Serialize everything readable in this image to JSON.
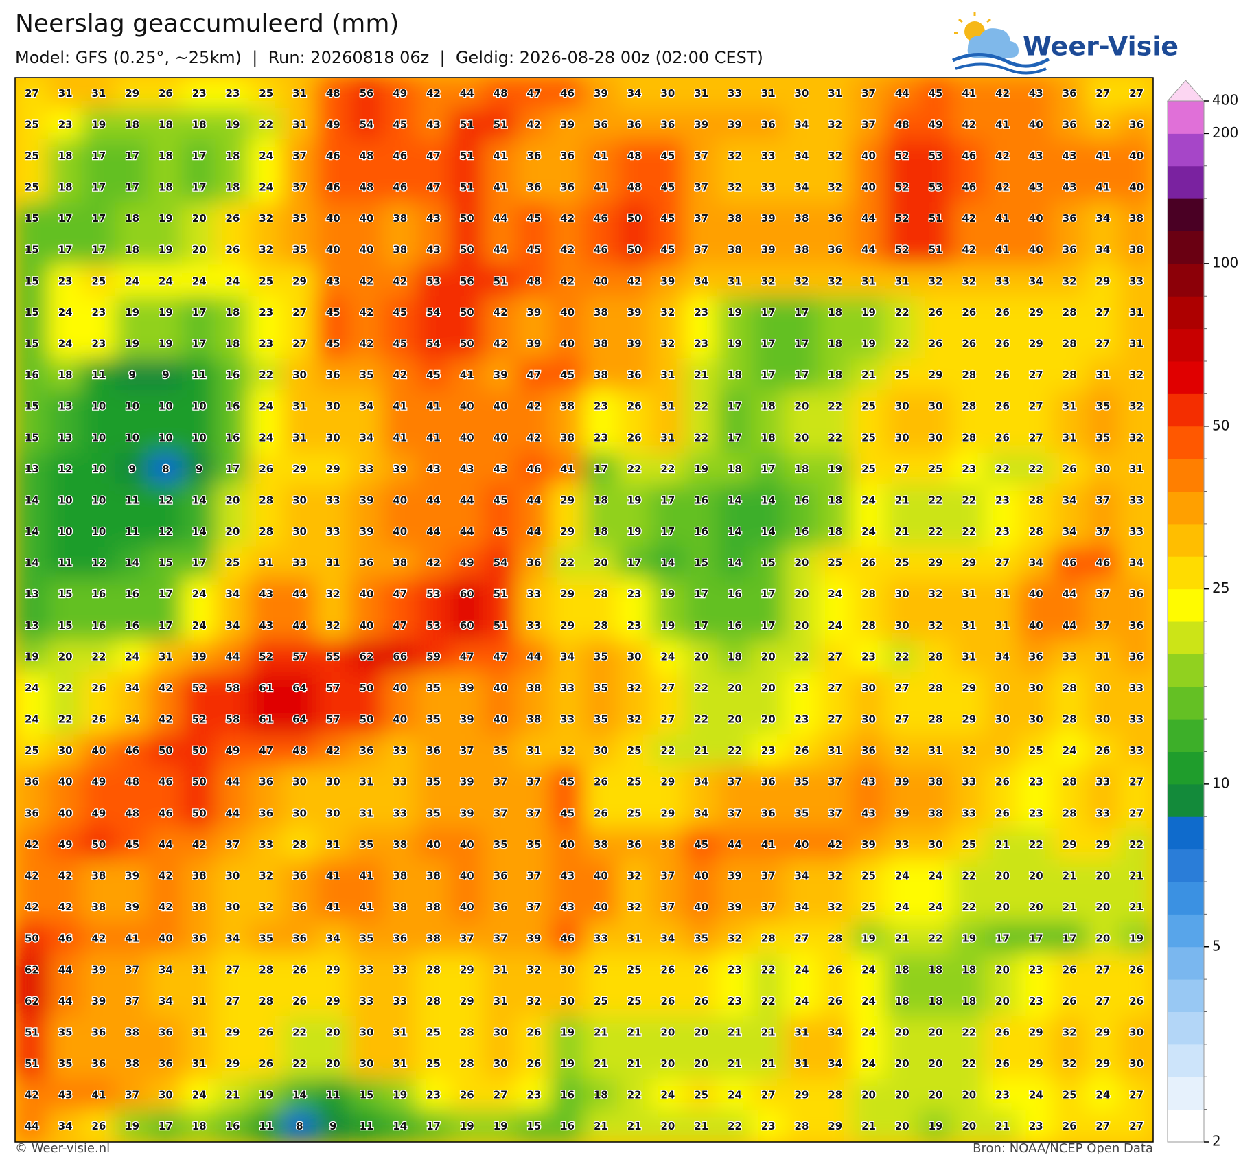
{
  "header": {
    "title": "Neerslag geaccumuleerd (mm)",
    "subtitle": "Model: GFS (0.25°, ~25km)  |  Run: 20260818 06z  |  Geldig: 2026-08-28 00z (02:00 CEST)",
    "logo": "Weer-Visie"
  },
  "map": {
    "values": [
      [
        27,
        31,
        31,
        29,
        26,
        23,
        23,
        25,
        31,
        48,
        56,
        49,
        42,
        44,
        48,
        47,
        46,
        39,
        34,
        30,
        31,
        33,
        31,
        30,
        31,
        37,
        44,
        45,
        41,
        42,
        43,
        36,
        27,
        27
      ],
      [
        25,
        23,
        19,
        18,
        18,
        18,
        19,
        22,
        31,
        49,
        54,
        45,
        43,
        51,
        51,
        42,
        39,
        36,
        36,
        36,
        39,
        39,
        36,
        34,
        32,
        37,
        48,
        49,
        42,
        41,
        40,
        36,
        32,
        36
      ],
      [
        25,
        18,
        17,
        17,
        18,
        17,
        18,
        24,
        37,
        46,
        48,
        46,
        47,
        51,
        41,
        36,
        36,
        41,
        48,
        45,
        37,
        32,
        33,
        34,
        32,
        40,
        52,
        53,
        46,
        42,
        43,
        43,
        41,
        40
      ],
      [
        25,
        18,
        17,
        17,
        18,
        17,
        18,
        24,
        37,
        46,
        48,
        46,
        47,
        51,
        41,
        36,
        36,
        41,
        48,
        45,
        37,
        32,
        33,
        34,
        32,
        40,
        52,
        53,
        46,
        42,
        43,
        43,
        41,
        40
      ],
      [
        15,
        17,
        17,
        18,
        19,
        20,
        26,
        32,
        35,
        40,
        40,
        38,
        43,
        50,
        44,
        45,
        42,
        46,
        50,
        45,
        37,
        38,
        39,
        38,
        36,
        44,
        52,
        51,
        42,
        41,
        40,
        36,
        34,
        38
      ],
      [
        15,
        17,
        17,
        18,
        19,
        20,
        26,
        32,
        35,
        40,
        40,
        38,
        43,
        50,
        44,
        45,
        42,
        46,
        50,
        45,
        37,
        38,
        39,
        38,
        36,
        44,
        52,
        51,
        42,
        41,
        40,
        36,
        34,
        38
      ],
      [
        15,
        23,
        25,
        24,
        24,
        24,
        24,
        25,
        29,
        43,
        42,
        42,
        53,
        56,
        51,
        48,
        42,
        40,
        42,
        39,
        34,
        31,
        32,
        32,
        32,
        31,
        31,
        32,
        32,
        33,
        34,
        32,
        29,
        33
      ],
      [
        15,
        24,
        23,
        19,
        19,
        17,
        18,
        23,
        27,
        45,
        42,
        45,
        54,
        50,
        42,
        39,
        40,
        38,
        39,
        32,
        23,
        19,
        17,
        17,
        18,
        19,
        22,
        26,
        26,
        26,
        29,
        28,
        27,
        31
      ],
      [
        15,
        24,
        23,
        19,
        19,
        17,
        18,
        23,
        27,
        45,
        42,
        45,
        54,
        50,
        42,
        39,
        40,
        38,
        39,
        32,
        23,
        19,
        17,
        17,
        18,
        19,
        22,
        26,
        26,
        26,
        29,
        28,
        27,
        31
      ],
      [
        16,
        18,
        11,
        9,
        9,
        11,
        16,
        22,
        30,
        36,
        35,
        42,
        45,
        41,
        39,
        47,
        45,
        38,
        36,
        31,
        21,
        18,
        17,
        17,
        18,
        21,
        25,
        29,
        28,
        26,
        27,
        28,
        31,
        32
      ],
      [
        15,
        13,
        10,
        10,
        10,
        10,
        16,
        24,
        31,
        30,
        34,
        41,
        41,
        40,
        40,
        42,
        38,
        23,
        26,
        31,
        22,
        17,
        18,
        20,
        22,
        25,
        30,
        30,
        28,
        26,
        27,
        31,
        35,
        32
      ],
      [
        15,
        13,
        10,
        10,
        10,
        10,
        16,
        24,
        31,
        30,
        34,
        41,
        41,
        40,
        40,
        42,
        38,
        23,
        26,
        31,
        22,
        17,
        18,
        20,
        22,
        25,
        30,
        30,
        28,
        26,
        27,
        31,
        35,
        32
      ],
      [
        13,
        12,
        10,
        9,
        8,
        9,
        17,
        26,
        29,
        29,
        33,
        39,
        43,
        43,
        43,
        46,
        41,
        17,
        22,
        22,
        19,
        18,
        17,
        18,
        19,
        25,
        27,
        25,
        23,
        22,
        22,
        26,
        30,
        31
      ],
      [
        14,
        10,
        10,
        11,
        12,
        14,
        20,
        28,
        30,
        33,
        39,
        40,
        44,
        44,
        45,
        44,
        29,
        18,
        19,
        17,
        16,
        14,
        14,
        16,
        18,
        24,
        21,
        22,
        22,
        23,
        28,
        34,
        37,
        33
      ],
      [
        14,
        10,
        10,
        11,
        12,
        14,
        20,
        28,
        30,
        33,
        39,
        40,
        44,
        44,
        45,
        44,
        29,
        18,
        19,
        17,
        16,
        14,
        14,
        16,
        18,
        24,
        21,
        22,
        22,
        23,
        28,
        34,
        37,
        33
      ],
      [
        14,
        11,
        12,
        14,
        15,
        17,
        25,
        31,
        33,
        31,
        36,
        38,
        42,
        49,
        54,
        36,
        22,
        20,
        17,
        14,
        15,
        14,
        15,
        20,
        25,
        26,
        25,
        29,
        29,
        27,
        34,
        46,
        46,
        34
      ],
      [
        13,
        15,
        16,
        16,
        17,
        24,
        34,
        43,
        44,
        32,
        40,
        47,
        53,
        60,
        51,
        33,
        29,
        28,
        23,
        19,
        17,
        16,
        17,
        20,
        24,
        28,
        30,
        32,
        31,
        31,
        40,
        44,
        37,
        36
      ],
      [
        13,
        15,
        16,
        16,
        17,
        24,
        34,
        43,
        44,
        32,
        40,
        47,
        53,
        60,
        51,
        33,
        29,
        28,
        23,
        19,
        17,
        16,
        17,
        20,
        24,
        28,
        30,
        32,
        31,
        31,
        40,
        44,
        37,
        36
      ],
      [
        19,
        20,
        22,
        24,
        31,
        39,
        44,
        52,
        57,
        55,
        62,
        66,
        59,
        47,
        47,
        44,
        34,
        35,
        30,
        24,
        20,
        18,
        20,
        22,
        27,
        23,
        22,
        28,
        31,
        34,
        36,
        33,
        31,
        36
      ],
      [
        24,
        22,
        26,
        34,
        42,
        52,
        58,
        61,
        64,
        57,
        50,
        40,
        35,
        39,
        40,
        38,
        33,
        35,
        32,
        27,
        22,
        20,
        20,
        23,
        27,
        30,
        27,
        28,
        29,
        30,
        30,
        28,
        30,
        33
      ],
      [
        24,
        22,
        26,
        34,
        42,
        52,
        58,
        61,
        64,
        57,
        50,
        40,
        35,
        39,
        40,
        38,
        33,
        35,
        32,
        27,
        22,
        20,
        20,
        23,
        27,
        30,
        27,
        28,
        29,
        30,
        30,
        28,
        30,
        33
      ],
      [
        25,
        30,
        40,
        46,
        50,
        50,
        49,
        47,
        48,
        42,
        36,
        33,
        36,
        37,
        35,
        31,
        32,
        30,
        25,
        22,
        21,
        22,
        23,
        26,
        31,
        36,
        32,
        31,
        32,
        30,
        25,
        24,
        26,
        33
      ],
      [
        36,
        40,
        49,
        48,
        46,
        50,
        44,
        36,
        30,
        30,
        31,
        33,
        35,
        39,
        37,
        37,
        45,
        26,
        25,
        29,
        34,
        37,
        36,
        35,
        37,
        43,
        39,
        38,
        33,
        26,
        23,
        28,
        33,
        27
      ],
      [
        36,
        40,
        49,
        48,
        46,
        50,
        44,
        36,
        30,
        30,
        31,
        33,
        35,
        39,
        37,
        37,
        45,
        26,
        25,
        29,
        34,
        37,
        36,
        35,
        37,
        43,
        39,
        38,
        33,
        26,
        23,
        28,
        33,
        27
      ],
      [
        42,
        49,
        50,
        45,
        44,
        42,
        37,
        33,
        28,
        31,
        35,
        38,
        40,
        40,
        35,
        35,
        40,
        38,
        36,
        38,
        45,
        44,
        41,
        40,
        42,
        39,
        33,
        30,
        25,
        21,
        22,
        29,
        29,
        22
      ],
      [
        42,
        42,
        38,
        39,
        42,
        38,
        30,
        32,
        36,
        41,
        41,
        38,
        38,
        40,
        36,
        37,
        43,
        40,
        32,
        37,
        40,
        39,
        37,
        34,
        32,
        25,
        24,
        24,
        22,
        20,
        20,
        21,
        20,
        21
      ],
      [
        42,
        42,
        38,
        39,
        42,
        38,
        30,
        32,
        36,
        41,
        41,
        38,
        38,
        40,
        36,
        37,
        43,
        40,
        32,
        37,
        40,
        39,
        37,
        34,
        32,
        25,
        24,
        24,
        22,
        20,
        20,
        21,
        20,
        21
      ],
      [
        50,
        46,
        42,
        41,
        40,
        36,
        34,
        35,
        36,
        34,
        35,
        36,
        38,
        37,
        37,
        39,
        46,
        33,
        31,
        34,
        35,
        32,
        28,
        27,
        28,
        19,
        21,
        22,
        19,
        17,
        17,
        17,
        20,
        19
      ],
      [
        62,
        44,
        39,
        37,
        34,
        31,
        27,
        28,
        26,
        29,
        33,
        33,
        28,
        29,
        31,
        32,
        30,
        25,
        25,
        26,
        26,
        23,
        22,
        24,
        26,
        24,
        18,
        18,
        18,
        20,
        23,
        26,
        27,
        26
      ],
      [
        62,
        44,
        39,
        37,
        34,
        31,
        27,
        28,
        26,
        29,
        33,
        33,
        28,
        29,
        31,
        32,
        30,
        25,
        25,
        26,
        26,
        23,
        22,
        24,
        26,
        24,
        18,
        18,
        18,
        20,
        23,
        26,
        27,
        26
      ],
      [
        51,
        35,
        36,
        38,
        36,
        31,
        29,
        26,
        22,
        20,
        30,
        31,
        25,
        28,
        30,
        26,
        19,
        21,
        21,
        20,
        20,
        21,
        21,
        31,
        34,
        24,
        20,
        20,
        22,
        26,
        29,
        32,
        29,
        30
      ],
      [
        51,
        35,
        36,
        38,
        36,
        31,
        29,
        26,
        22,
        20,
        30,
        31,
        25,
        28,
        30,
        26,
        19,
        21,
        21,
        20,
        20,
        21,
        21,
        31,
        34,
        24,
        20,
        20,
        22,
        26,
        29,
        32,
        29,
        30
      ],
      [
        42,
        43,
        41,
        37,
        30,
        24,
        21,
        19,
        14,
        11,
        15,
        19,
        23,
        26,
        27,
        23,
        16,
        18,
        22,
        24,
        25,
        24,
        27,
        29,
        28,
        20,
        20,
        20,
        20,
        23,
        24,
        25,
        24,
        27
      ],
      [
        44,
        34,
        26,
        19,
        17,
        18,
        16,
        11,
        8,
        9,
        11,
        14,
        17,
        19,
        19,
        15,
        16,
        21,
        21,
        20,
        21,
        22,
        23,
        28,
        29,
        21,
        20,
        19,
        20,
        21,
        23,
        26,
        27,
        27
      ]
    ],
    "colorbar": {
      "bounds": [
        2,
        2.5,
        3,
        3.5,
        4,
        4.5,
        5,
        6,
        7,
        8,
        9,
        10,
        12.5,
        15,
        17.5,
        20,
        22.5,
        25,
        30,
        35,
        40,
        45,
        50,
        60,
        70,
        80,
        90,
        100,
        125,
        150,
        175,
        200,
        400
      ],
      "colors": [
        "#ffffff",
        "#e6f1fc",
        "#cde4fa",
        "#b3d6f7",
        "#98c8f3",
        "#7ab7ef",
        "#58a5ea",
        "#3b91e2",
        "#2a7dd8",
        "#0f6bcc",
        "#138a3a",
        "#1f9d2c",
        "#3daf29",
        "#64c024",
        "#91d11f",
        "#cce417",
        "#fffb00",
        "#ffdc00",
        "#ffbe00",
        "#ffa000",
        "#ff7f00",
        "#ff5800",
        "#f42e00",
        "#e00000",
        "#c80000",
        "#ad0000",
        "#8c0008",
        "#6a0012",
        "#4a0024",
        "#7a22a0",
        "#a646c8",
        "#e070d8"
      ],
      "over_color": "#fcd6f2",
      "ticks": [
        2,
        5,
        10,
        25,
        50,
        100,
        200,
        400
      ]
    }
  },
  "footer": {
    "credit": "© Weer-visie.nl",
    "source": "Bron: NOAA/NCEP Open Data"
  }
}
